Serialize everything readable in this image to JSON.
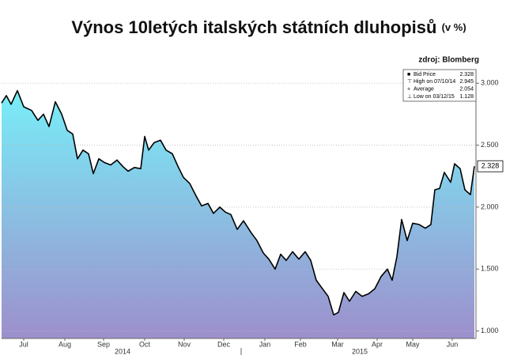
{
  "chart_data": {
    "type": "area",
    "title": "Výnos 10letých italských státních dluhopisů",
    "subtitle": "(v %)",
    "source": "zdroj: Blomberg",
    "x": [
      0,
      0.12,
      0.24,
      0.4,
      0.56,
      0.76,
      0.92,
      1.06,
      1.2,
      1.36,
      1.52,
      1.66,
      1.8,
      1.92,
      2.06,
      2.2,
      2.32,
      2.46,
      2.6,
      2.76,
      2.92,
      3.06,
      3.2,
      3.36,
      3.52,
      3.62,
      3.72,
      3.86,
      4.02,
      4.16,
      4.32,
      4.46,
      4.6,
      4.76,
      4.92,
      5.06,
      5.22,
      5.36,
      5.52,
      5.66,
      5.8,
      5.96,
      6.12,
      6.32,
      6.46,
      6.62,
      6.76,
      6.92,
      7.06,
      7.2,
      7.36,
      7.52,
      7.68,
      7.82,
      7.96,
      8.12,
      8.26,
      8.4,
      8.52,
      8.66,
      8.8,
      8.96,
      9.12,
      9.28,
      9.44,
      9.6,
      9.76,
      9.88,
      10,
      10.12,
      10.26,
      10.4,
      10.56,
      10.72,
      10.86,
      10.96,
      11.08,
      11.2,
      11.36,
      11.46,
      11.6,
      11.72,
      11.86,
      11.96
    ],
    "series": [
      {
        "name": "Bid Price",
        "color": "#000000",
        "values": [
          2.84,
          2.9,
          2.83,
          2.94,
          2.81,
          2.78,
          2.7,
          2.75,
          2.65,
          2.85,
          2.75,
          2.62,
          2.59,
          2.39,
          2.46,
          2.43,
          2.27,
          2.39,
          2.36,
          2.34,
          2.38,
          2.33,
          2.29,
          2.32,
          2.31,
          2.57,
          2.46,
          2.52,
          2.54,
          2.46,
          2.43,
          2.33,
          2.24,
          2.19,
          2.09,
          2.01,
          2.03,
          1.95,
          2.0,
          1.96,
          1.94,
          1.82,
          1.89,
          1.79,
          1.73,
          1.63,
          1.58,
          1.5,
          1.62,
          1.57,
          1.64,
          1.58,
          1.64,
          1.57,
          1.41,
          1.34,
          1.28,
          1.13,
          1.15,
          1.31,
          1.24,
          1.32,
          1.28,
          1.3,
          1.34,
          1.44,
          1.5,
          1.41,
          1.6,
          1.9,
          1.73,
          1.87,
          1.86,
          1.83,
          1.86,
          2.14,
          2.15,
          2.28,
          2.2,
          2.35,
          2.31,
          2.14,
          2.1,
          2.33
        ]
      }
    ],
    "xlim": [
      0,
      12
    ],
    "xticks": [
      {
        "value": 0.56,
        "label": "Jul"
      },
      {
        "value": 1.6,
        "label": "Aug"
      },
      {
        "value": 2.58,
        "label": "Sep"
      },
      {
        "value": 3.62,
        "label": "Oct"
      },
      {
        "value": 4.62,
        "label": "Nov"
      },
      {
        "value": 5.62,
        "label": "Dec"
      },
      {
        "value": 6.66,
        "label": "Jan"
      },
      {
        "value": 7.56,
        "label": "Feb"
      },
      {
        "value": 8.5,
        "label": "Mar"
      },
      {
        "value": 9.5,
        "label": "Apr"
      },
      {
        "value": 10.4,
        "label": "May"
      },
      {
        "value": 11.4,
        "label": "Jun"
      }
    ],
    "xgroups": [
      {
        "value": 3.06,
        "label": "2014"
      },
      {
        "value": 9.06,
        "label": "2015"
      }
    ],
    "ylim": [
      0.94,
      3.11
    ],
    "yticks": [
      {
        "value": 1,
        "label": "1.000"
      },
      {
        "value": 1.5,
        "label": "1.500"
      },
      {
        "value": 2,
        "label": "2.000"
      },
      {
        "value": 2.5,
        "label": "2.500"
      },
      {
        "value": 3,
        "label": "3.000"
      }
    ],
    "grid": true,
    "stats": [
      {
        "label": "Bid Price",
        "value": 2.328
      },
      {
        "label": "High on 07/10/14",
        "value": 2.945
      },
      {
        "label": "Average",
        "value": 2.054
      },
      {
        "label": "Low on 03/12/15",
        "value": 1.128
      }
    ]
  }
}
